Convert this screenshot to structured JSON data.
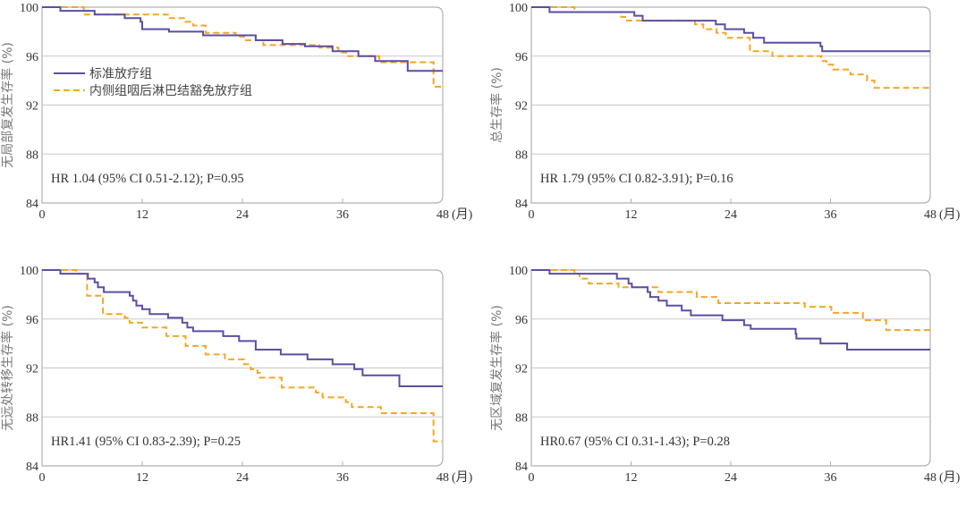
{
  "colors": {
    "standard": "#5b4ea3",
    "sparing": "#f5a623",
    "grid": "#c8c8c8",
    "axis": "#b0b0b0"
  },
  "legend": {
    "standard": "标准放疗组",
    "sparing": "内侧组咽后淋巴结豁免放疗组"
  },
  "chart_data": [
    {
      "type": "line",
      "step": true,
      "ylabel": "无局部复发生存率 (%)",
      "xlabel_unit": "(月)",
      "xlim": [
        0,
        48
      ],
      "ylim": [
        84,
        100
      ],
      "xticks": [
        "0",
        "12",
        "24",
        "36",
        "48"
      ],
      "yticks": [
        "84",
        "88",
        "92",
        "96",
        "100"
      ],
      "annotation": "HR 1.04 (95% CI 0.51-2.12); P=0.95",
      "legend_position": "upper-left",
      "series": [
        {
          "name": "标准放疗组",
          "style": "solid",
          "points": [
            [
              0,
              100
            ],
            [
              2.2,
              99.7
            ],
            [
              6.3,
              99.4
            ],
            [
              9.9,
              99.1
            ],
            [
              11.8,
              98.8
            ],
            [
              12,
              98.2
            ],
            [
              15.2,
              98.0
            ],
            [
              19.3,
              97.7
            ],
            [
              25.6,
              97.3
            ],
            [
              28.8,
              97.0
            ],
            [
              31.5,
              96.8
            ],
            [
              34.8,
              96.4
            ],
            [
              37.9,
              96.0
            ],
            [
              39.9,
              95.6
            ],
            [
              43.8,
              94.8
            ],
            [
              48,
              94.8
            ]
          ]
        },
        {
          "name": "内侧组咽后淋巴结豁免放疗组",
          "style": "dashed",
          "points": [
            [
              0,
              100
            ],
            [
              5.0,
              99.4
            ],
            [
              15.3,
              99.1
            ],
            [
              17.2,
              98.8
            ],
            [
              18.1,
              98.5
            ],
            [
              19.6,
              97.9
            ],
            [
              23.2,
              97.6
            ],
            [
              24.2,
              97.3
            ],
            [
              26.5,
              96.9
            ],
            [
              33.2,
              96.7
            ],
            [
              35.5,
              96.3
            ],
            [
              36.4,
              96.0
            ],
            [
              40.4,
              95.5
            ],
            [
              46.9,
              93.5
            ],
            [
              48,
              93.5
            ]
          ]
        }
      ]
    },
    {
      "type": "line",
      "step": true,
      "ylabel": "总生存率 (%)",
      "xlabel_unit": "(月)",
      "xlim": [
        0,
        48
      ],
      "ylim": [
        84,
        100
      ],
      "xticks": [
        "0",
        "12",
        "24",
        "36",
        "48"
      ],
      "yticks": [
        "84",
        "88",
        "92",
        "96",
        "100"
      ],
      "annotation": "HR 1.79 (95% CI 0.82-3.91); P=0.16",
      "series": [
        {
          "name": "标准放疗组",
          "style": "solid",
          "points": [
            [
              0,
              100
            ],
            [
              2.2,
              99.6
            ],
            [
              12.4,
              99.3
            ],
            [
              13.4,
              98.9
            ],
            [
              22.2,
              98.6
            ],
            [
              23.3,
              98.2
            ],
            [
              25.6,
              97.9
            ],
            [
              26.7,
              97.5
            ],
            [
              28,
              97.1
            ],
            [
              34.8,
              96.8
            ],
            [
              35,
              96.4
            ],
            [
              48,
              96.4
            ]
          ]
        },
        {
          "name": "内侧组咽后淋巴结豁免放疗组",
          "style": "dashed",
          "points": [
            [
              0,
              100
            ],
            [
              5.2,
              99.6
            ],
            [
              10.8,
              99.2
            ],
            [
              11.3,
              98.9
            ],
            [
              19.7,
              98.6
            ],
            [
              20.7,
              98.2
            ],
            [
              22.3,
              97.9
            ],
            [
              23.4,
              97.5
            ],
            [
              26.3,
              96.4
            ],
            [
              29,
              96.0
            ],
            [
              34.9,
              95.6
            ],
            [
              35.5,
              95.3
            ],
            [
              36.3,
              94.9
            ],
            [
              38.4,
              94.5
            ],
            [
              40.4,
              94.0
            ],
            [
              41.3,
              93.4
            ],
            [
              48,
              93.4
            ]
          ]
        }
      ]
    },
    {
      "type": "line",
      "step": true,
      "ylabel": "无远处转移生存率 (%)",
      "xlabel_unit": "(月)",
      "xlim": [
        0,
        48
      ],
      "ylim": [
        84,
        100
      ],
      "xticks": [
        "0",
        "12",
        "24",
        "36",
        "48"
      ],
      "yticks": [
        "84",
        "88",
        "92",
        "96",
        "100"
      ],
      "annotation": "HR1.41 (95% CI 0.83-2.39); P=0.25",
      "series": [
        {
          "name": "标准放疗组",
          "style": "solid",
          "points": [
            [
              0,
              100
            ],
            [
              2.2,
              99.7
            ],
            [
              5.5,
              99.3
            ],
            [
              6.3,
              99.0
            ],
            [
              6.7,
              98.6
            ],
            [
              7.4,
              98.2
            ],
            [
              10.5,
              97.9
            ],
            [
              10.9,
              97.5
            ],
            [
              11.3,
              97.1
            ],
            [
              12,
              96.8
            ],
            [
              12.9,
              96.4
            ],
            [
              15.1,
              96.1
            ],
            [
              16.8,
              95.7
            ],
            [
              17.4,
              95.3
            ],
            [
              18.1,
              95.0
            ],
            [
              21.7,
              94.6
            ],
            [
              23.6,
              94.2
            ],
            [
              25.6,
              93.5
            ],
            [
              28.6,
              93.1
            ],
            [
              31.8,
              92.7
            ],
            [
              34.8,
              92.3
            ],
            [
              37.4,
              91.9
            ],
            [
              38.4,
              91.4
            ],
            [
              42.8,
              90.5
            ],
            [
              48,
              90.5
            ]
          ]
        },
        {
          "name": "内侧组咽后淋巴结豁免放疗组",
          "style": "dashed",
          "points": [
            [
              0,
              100
            ],
            [
              4.1,
              99.7
            ],
            [
              5.4,
              97.9
            ],
            [
              7.3,
              96.4
            ],
            [
              9.9,
              96.1
            ],
            [
              10.5,
              95.7
            ],
            [
              12,
              95.3
            ],
            [
              14.9,
              94.6
            ],
            [
              17.2,
              93.8
            ],
            [
              19.6,
              93.1
            ],
            [
              21.9,
              92.7
            ],
            [
              24.2,
              92.3
            ],
            [
              25,
              91.9
            ],
            [
              25.8,
              91.6
            ],
            [
              26.1,
              91.2
            ],
            [
              28.7,
              90.4
            ],
            [
              32.8,
              90.0
            ],
            [
              33.6,
              89.6
            ],
            [
              36.4,
              89.2
            ],
            [
              37.1,
              88.8
            ],
            [
              40.6,
              88.3
            ],
            [
              46.9,
              86.0
            ],
            [
              48,
              86.0
            ]
          ]
        }
      ]
    },
    {
      "type": "line",
      "step": true,
      "ylabel": "无区域复发生存率 (%)",
      "xlabel_unit": "(月)",
      "xlim": [
        0,
        48
      ],
      "ylim": [
        84,
        100
      ],
      "xticks": [
        "0",
        "12",
        "24",
        "36",
        "48"
      ],
      "yticks": [
        "84",
        "88",
        "92",
        "96",
        "100"
      ],
      "annotation": "HR0.67 (95% CI 0.31-1.43); P=0.28",
      "series": [
        {
          "name": "标准放疗组",
          "style": "solid",
          "points": [
            [
              0,
              100
            ],
            [
              2.2,
              99.7
            ],
            [
              10.3,
              99.3
            ],
            [
              11.7,
              98.9
            ],
            [
              12.1,
              98.6
            ],
            [
              14,
              98.2
            ],
            [
              14.3,
              97.8
            ],
            [
              15.3,
              97.5
            ],
            [
              16.3,
              97.1
            ],
            [
              18.1,
              96.7
            ],
            [
              19.2,
              96.3
            ],
            [
              23,
              95.9
            ],
            [
              25.6,
              95.5
            ],
            [
              26.4,
              95.2
            ],
            [
              31.8,
              94.8
            ],
            [
              31.9,
              94.4
            ],
            [
              34.8,
              94.0
            ],
            [
              38,
              93.5
            ],
            [
              48,
              93.5
            ]
          ]
        },
        {
          "name": "内侧组咽后淋巴结豁免放疗组",
          "style": "dashed",
          "points": [
            [
              0,
              100
            ],
            [
              5.2,
              99.7
            ],
            [
              5.8,
              99.3
            ],
            [
              6.9,
              98.9
            ],
            [
              10.5,
              98.6
            ],
            [
              15.3,
              98.2
            ],
            [
              19.9,
              97.8
            ],
            [
              22.5,
              97.3
            ],
            [
              32.9,
              97.0
            ],
            [
              36.1,
              96.5
            ],
            [
              39.9,
              95.9
            ],
            [
              42.7,
              95.1
            ],
            [
              48,
              95.1
            ]
          ]
        }
      ]
    }
  ]
}
